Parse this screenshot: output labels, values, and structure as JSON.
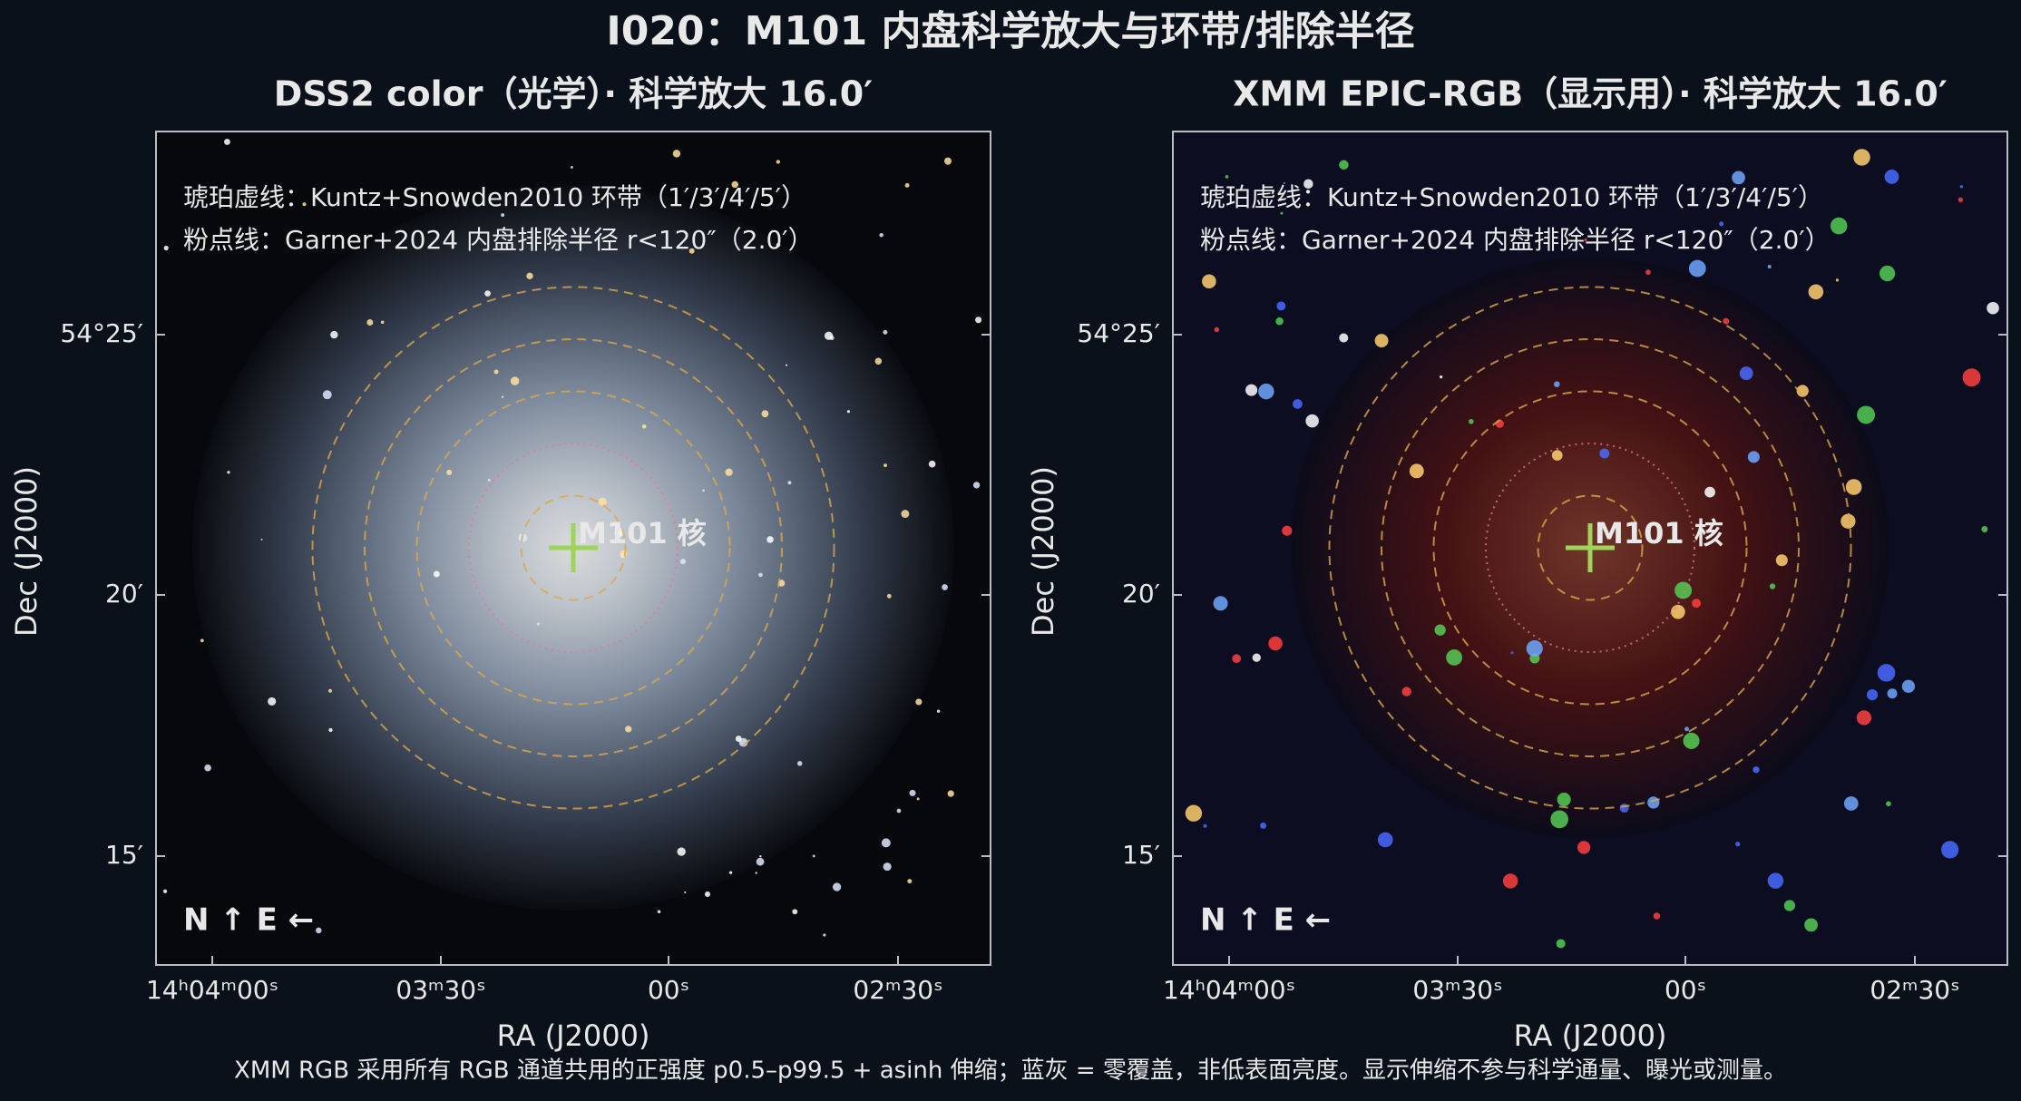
{
  "title": "I020：M101 内盘科学放大与环带/排除半径",
  "panels": [
    {
      "title": "DSS2 color（光学）· 科学放大 16.0′",
      "legend": [
        "琥珀虚线：Kuntz+Snowden2010 环带（1′/3′/4′/5′）",
        "粉点线：Garner+2024 内盘排除半径 r<120″（2.0′）"
      ],
      "marker": "M101 核",
      "compass": "N ↑  E ←",
      "yticks": [
        "54°25′",
        "20′",
        "15′"
      ],
      "xticks": [
        "14ʰ04ᵐ00ˢ",
        "03ᵐ30ˢ",
        "00ˢ",
        "02ᵐ30ˢ"
      ],
      "xlabel": "RA (J2000)",
      "ylabel": "Dec (J2000)"
    },
    {
      "title": "XMM EPIC-RGB（显示用）· 科学放大 16.0′",
      "legend": [
        "琥珀虚线：Kuntz+Snowden2010 环带（1′/3′/4′/5′）",
        "粉点线：Garner+2024 内盘排除半径 r<120″（2.0′）"
      ],
      "marker": "M101 核",
      "compass": "N ↑  E ←",
      "yticks": [
        "54°25′",
        "20′",
        "15′"
      ],
      "xticks": [
        "14ʰ04ᵐ00ˢ",
        "03ᵐ30ˢ",
        "00ˢ",
        "02ᵐ30ˢ"
      ],
      "xlabel": "RA (J2000)",
      "ylabel": "Dec (J2000)"
    }
  ],
  "caption": "XMM RGB 采用所有 RGB 通道共用的正强度 p0.5–p99.5 + asinh 伸缩；蓝灰 = 零覆盖，非低表面亮度。显示伸缩不参与科学通量、曝光或测量。"
}
